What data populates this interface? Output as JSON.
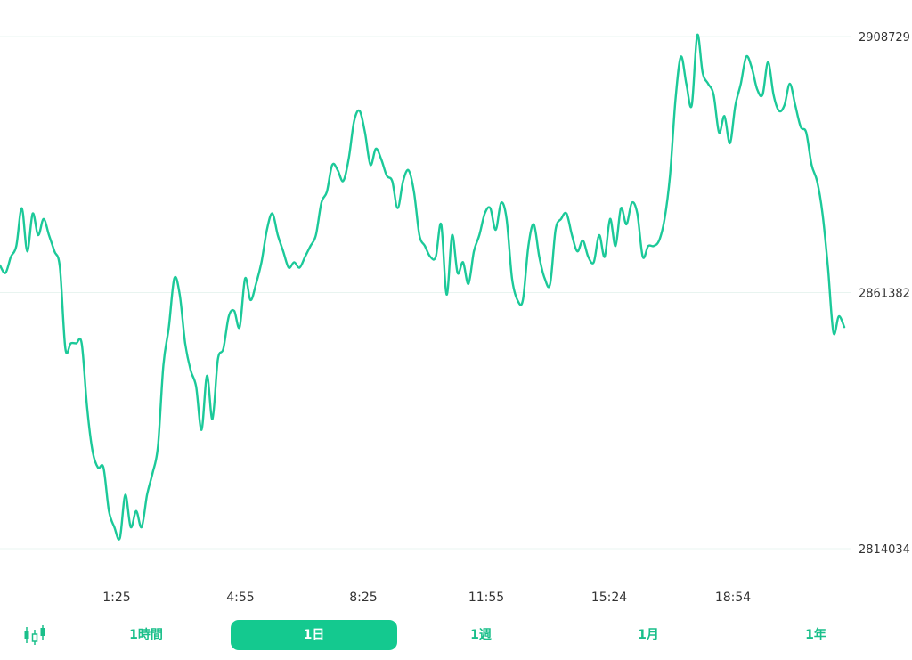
{
  "chart_data": {
    "type": "line",
    "x_ticks": [
      "1:25",
      "4:55",
      "8:25",
      "11:55",
      "15:24",
      "18:54"
    ],
    "y_ticks": [
      2908729,
      2861382,
      2814034
    ],
    "ylim": [
      2814034,
      2908729
    ],
    "grid": "horizontal",
    "line_color": "#1cc999",
    "series": [
      {
        "values": [
          2866400,
          2865000,
          2868000,
          2870000,
          2877000,
          2869000,
          2876000,
          2872000,
          2875000,
          2872000,
          2869000,
          2866000,
          2851000,
          2852000,
          2852000,
          2852000,
          2840000,
          2832000,
          2829000,
          2829000,
          2821000,
          2818000,
          2816000,
          2824000,
          2818000,
          2821000,
          2818000,
          2824000,
          2828000,
          2833000,
          2848000,
          2855000,
          2864000,
          2861000,
          2852000,
          2847000,
          2844000,
          2836000,
          2846000,
          2838000,
          2849000,
          2851000,
          2857000,
          2858000,
          2855000,
          2864000,
          2860000,
          2863000,
          2867000,
          2873000,
          2876000,
          2872000,
          2869000,
          2866000,
          2867000,
          2866000,
          2868000,
          2870000,
          2872000,
          2878000,
          2880000,
          2885000,
          2884000,
          2882000,
          2886000,
          2893000,
          2895000,
          2891000,
          2885000,
          2888000,
          2886000,
          2883000,
          2882000,
          2877000,
          2882000,
          2884000,
          2880000,
          2872000,
          2870000,
          2868000,
          2868000,
          2874000,
          2861000,
          2872000,
          2865000,
          2867000,
          2863000,
          2869000,
          2872000,
          2876000,
          2877000,
          2873000,
          2878000,
          2875000,
          2864000,
          2860000,
          2860000,
          2870000,
          2874000,
          2868000,
          2864000,
          2863000,
          2873000,
          2875000,
          2876000,
          2872000,
          2869000,
          2871000,
          2868000,
          2867000,
          2872000,
          2868000,
          2875000,
          2870000,
          2877000,
          2874000,
          2878000,
          2876000,
          2868000,
          2870000,
          2870000,
          2871000,
          2875000,
          2883000,
          2897000,
          2905000,
          2900000,
          2896000,
          2909000,
          2902000,
          2900000,
          2898000,
          2891000,
          2894000,
          2889000,
          2896000,
          2900000,
          2905000,
          2903000,
          2899000,
          2898000,
          2904000,
          2898000,
          2895000,
          2896000,
          2900000,
          2896000,
          2892000,
          2891000,
          2885000,
          2882000,
          2876000,
          2866000,
          2854000,
          2857000,
          2855000
        ]
      }
    ]
  },
  "toolbar": {
    "candle_icon": "candlestick-icon",
    "tabs": [
      {
        "label": "1時間",
        "active": false
      },
      {
        "label": "1日",
        "active": true
      },
      {
        "label": "1週",
        "active": false
      },
      {
        "label": "1月",
        "active": false
      },
      {
        "label": "1年",
        "active": false
      }
    ]
  }
}
